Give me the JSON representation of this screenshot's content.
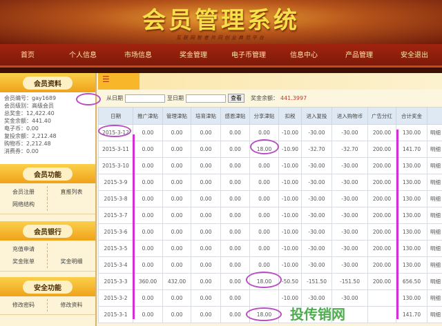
{
  "header": {
    "title": "会员管理系统",
    "slogan": "互联网智者共同创业典范平台"
  },
  "nav": [
    "首页",
    "个人信息",
    "市场信息",
    "奖金管理",
    "电子币管理",
    "信息中心",
    "产品管理",
    "安全退出"
  ],
  "sidebar": {
    "profile": {
      "title": "会员资料",
      "lines": [
        "会员编号：gay1689",
        "会员级别：高级会员",
        "总奖金：12,422.40",
        "奖金余额：441.40",
        "电子币：0.00",
        "复投余额：2,212.48",
        "购物币：2,212.48",
        "消费券：0.00"
      ]
    },
    "functions": {
      "title": "会员功能",
      "items": [
        "会员注册",
        "直推列表",
        "网络结构"
      ]
    },
    "bank": {
      "title": "会员银行",
      "items": [
        "充值申请",
        "",
        "奖金账单",
        "奖金明细"
      ]
    },
    "security": {
      "title": "安全功能",
      "items": [
        "修改密码",
        "修改资料"
      ]
    }
  },
  "filter": {
    "from_label": "从日期",
    "to_label": "至日期",
    "from_value": "",
    "to_value": "",
    "search_button": "查看",
    "balance_label": "奖金余额：",
    "balance_value": "441.3997"
  },
  "table": {
    "headers": [
      "日期",
      "推广津贴",
      "管理津贴",
      "培育津贴",
      "感恩津贴",
      "分享津贴",
      "扣税",
      "进入复投",
      "进入购物币",
      "广告分红",
      "合计奖金",
      ""
    ],
    "rows": [
      [
        "2015-3-12",
        "0.00",
        "0.00",
        "0.00",
        "0.00",
        "0.00",
        "-10.00",
        "-30.00",
        "-30.00",
        "200.00",
        "130.00",
        "明细"
      ],
      [
        "2015-3-11",
        "0.00",
        "0.00",
        "0.00",
        "0.00",
        "18.00",
        "-10.90",
        "-32.70",
        "-32.70",
        "200.00",
        "141.70",
        "明细"
      ],
      [
        "2015-3-10",
        "0.00",
        "0.00",
        "0.00",
        "0.00",
        "0.00",
        "-10.00",
        "-30.00",
        "-30.00",
        "200.00",
        "130.00",
        "明细"
      ],
      [
        "2015-3-9",
        "0.00",
        "0.00",
        "0.00",
        "0.00",
        "0.00",
        "-10.00",
        "-30.00",
        "-30.00",
        "200.00",
        "130.00",
        "明细"
      ],
      [
        "2015-3-8",
        "0.00",
        "0.00",
        "0.00",
        "0.00",
        "0.00",
        "-10.00",
        "-30.00",
        "-30.00",
        "200.00",
        "130.00",
        "明细"
      ],
      [
        "2015-3-7",
        "0.00",
        "0.00",
        "0.00",
        "0.00",
        "0.00",
        "-10.00",
        "-30.00",
        "-30.00",
        "200.00",
        "130.00",
        "明细"
      ],
      [
        "2015-3-6",
        "0.00",
        "0.00",
        "0.00",
        "0.00",
        "0.00",
        "-10.00",
        "-30.00",
        "-30.00",
        "200.00",
        "130.00",
        "明细"
      ],
      [
        "2015-3-5",
        "0.00",
        "0.00",
        "0.00",
        "0.00",
        "0.00",
        "-10.00",
        "-30.00",
        "-30.00",
        "200.00",
        "130.00",
        "明细"
      ],
      [
        "2015-3-4",
        "0.00",
        "0.00",
        "0.00",
        "0.00",
        "0.00",
        "-10.00",
        "-30.00",
        "-30.00",
        "200.00",
        "130.00",
        "明细"
      ],
      [
        "2015-3-3",
        "360.00",
        "432.00",
        "0.00",
        "0.00",
        "18.00",
        "-50.50",
        "-151.50",
        "-151.50",
        "200.00",
        "656.50",
        "明细"
      ],
      [
        "2015-3-2",
        "0.00",
        "0.00",
        "0.00",
        "0.00",
        "",
        "-10.00",
        "-30.00",
        "-30.00",
        "",
        "130.00",
        "明细"
      ],
      [
        "2015-3-1",
        "0.00",
        "0.00",
        "0.00",
        "0.00",
        "18.00",
        "",
        "",
        "",
        "",
        "141.70",
        "明细"
      ]
    ]
  },
  "watermark": "投传销网",
  "colors": {
    "nav": "#8f1f0c",
    "section": "#f5b52a",
    "annotation": "#c03ccf"
  }
}
